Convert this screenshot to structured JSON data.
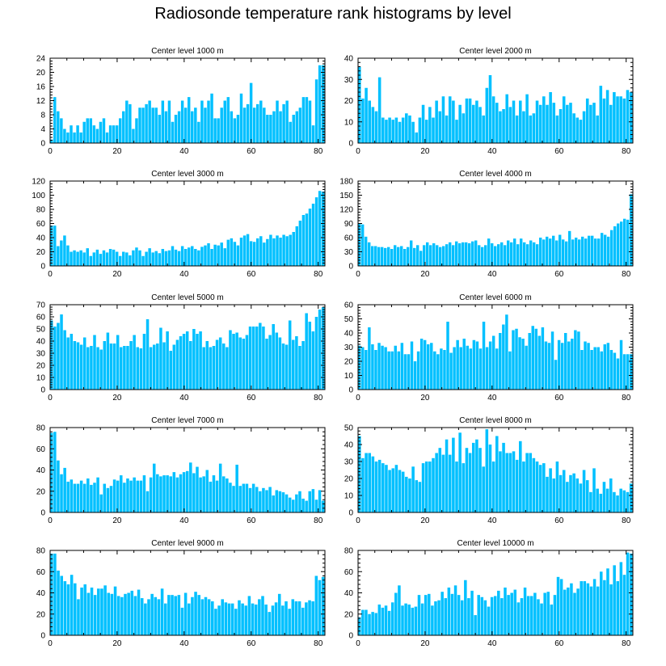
{
  "title": "Radiosonde temperature rank histograms by level",
  "colors": {
    "bar": "#00C0FF",
    "bar_edge": "#0090D0",
    "axis": "#000000"
  },
  "chart_data": [
    {
      "type": "bar",
      "title": "Center level 1000 m",
      "xlabel": "",
      "ylabel": "",
      "xlim": [
        0,
        82
      ],
      "ylim": [
        0,
        24
      ],
      "xticks": [
        0,
        20,
        40,
        60,
        80
      ],
      "yticks": [
        0,
        4,
        8,
        12,
        16,
        20,
        24
      ],
      "values": [
        1,
        13,
        9,
        7,
        4,
        3,
        5,
        3,
        5,
        3,
        6,
        7,
        7,
        5,
        4,
        6,
        7,
        3,
        5,
        5,
        5,
        7,
        9,
        12,
        11,
        4,
        7,
        10,
        10,
        11,
        12,
        10,
        10,
        8,
        12,
        9,
        12,
        6,
        8,
        9,
        12,
        10,
        13,
        9,
        10,
        6,
        12,
        10,
        12,
        14,
        7,
        7,
        10,
        12,
        13,
        9,
        7,
        8,
        14,
        10,
        11,
        17,
        10,
        11,
        12,
        10,
        8,
        8,
        9,
        12,
        9,
        11,
        12,
        6,
        8,
        9,
        10,
        13,
        13,
        12,
        5,
        18,
        22,
        22
      ]
    },
    {
      "type": "bar",
      "title": "Center level 2000 m",
      "xlabel": "",
      "ylabel": "",
      "xlim": [
        0,
        82
      ],
      "ylim": [
        0,
        40
      ],
      "xticks": [
        0,
        20,
        40,
        60,
        80
      ],
      "yticks": [
        0,
        10,
        20,
        30,
        40
      ],
      "values": [
        36,
        21,
        26,
        20,
        17,
        15,
        31,
        12,
        11,
        12,
        11,
        12,
        10,
        12,
        14,
        13,
        10,
        5,
        12,
        18,
        11,
        17,
        12,
        20,
        15,
        22,
        13,
        22,
        20,
        11,
        18,
        14,
        21,
        21,
        18,
        20,
        17,
        13,
        26,
        32,
        22,
        19,
        15,
        16,
        23,
        17,
        20,
        13,
        20,
        15,
        23,
        13,
        14,
        20,
        18,
        22,
        18,
        24,
        19,
        13,
        16,
        22,
        18,
        19,
        14,
        12,
        11,
        15,
        21,
        18,
        19,
        13,
        27,
        21,
        25,
        18,
        24,
        22,
        22,
        21,
        25,
        24
      ]
    },
    {
      "type": "bar",
      "title": "Center level 3000 m",
      "xlabel": "",
      "ylabel": "",
      "xlim": [
        0,
        82
      ],
      "ylim": [
        0,
        120
      ],
      "xticks": [
        0,
        20,
        40,
        60,
        80
      ],
      "yticks": [
        0,
        20,
        40,
        60,
        80,
        100,
        120
      ],
      "values": [
        57,
        57,
        28,
        36,
        43,
        29,
        20,
        22,
        20,
        22,
        19,
        25,
        14,
        19,
        23,
        17,
        22,
        19,
        24,
        23,
        20,
        14,
        20,
        19,
        15,
        22,
        26,
        22,
        14,
        20,
        25,
        19,
        21,
        18,
        24,
        21,
        22,
        28,
        23,
        21,
        28,
        24,
        26,
        28,
        24,
        22,
        27,
        29,
        32,
        24,
        30,
        29,
        33,
        25,
        37,
        39,
        34,
        29,
        40,
        43,
        45,
        35,
        34,
        39,
        42,
        33,
        38,
        44,
        39,
        43,
        40,
        44,
        42,
        44,
        48,
        56,
        64,
        72,
        74,
        81,
        88,
        97,
        106,
        105
      ]
    },
    {
      "type": "bar",
      "title": "Center level 4000 m",
      "xlabel": "",
      "ylabel": "",
      "xlim": [
        0,
        82
      ],
      "ylim": [
        0,
        180
      ],
      "xticks": [
        0,
        20,
        40,
        60,
        80
      ],
      "yticks": [
        0,
        30,
        60,
        90,
        120,
        150,
        180
      ],
      "values": [
        90,
        88,
        62,
        50,
        42,
        42,
        40,
        40,
        38,
        40,
        36,
        44,
        40,
        42,
        36,
        40,
        54,
        38,
        44,
        32,
        44,
        50,
        44,
        48,
        44,
        40,
        42,
        46,
        50,
        44,
        52,
        48,
        50,
        50,
        48,
        52,
        54,
        44,
        40,
        44,
        58,
        48,
        42,
        46,
        50,
        44,
        54,
        50,
        58,
        46,
        58,
        50,
        46,
        54,
        50,
        46,
        60,
        56,
        62,
        58,
        64,
        54,
        66,
        56,
        52,
        74,
        56,
        60,
        56,
        62,
        58,
        64,
        64,
        58,
        58,
        70,
        66,
        62,
        76,
        84,
        90,
        94,
        100,
        98,
        152
      ]
    },
    {
      "type": "bar",
      "title": "Center level 5000 m",
      "xlabel": "",
      "ylabel": "",
      "xlim": [
        0,
        82
      ],
      "ylim": [
        0,
        70
      ],
      "xticks": [
        0,
        20,
        40,
        60,
        80
      ],
      "yticks": [
        0,
        10,
        20,
        30,
        40,
        50,
        60,
        70
      ],
      "values": [
        57,
        52,
        55,
        62,
        49,
        43,
        46,
        40,
        39,
        37,
        43,
        35,
        36,
        45,
        35,
        33,
        40,
        47,
        38,
        38,
        45,
        35,
        36,
        36,
        40,
        45,
        35,
        34,
        46,
        58,
        35,
        37,
        38,
        51,
        39,
        48,
        32,
        37,
        41,
        44,
        46,
        48,
        40,
        50,
        46,
        48,
        35,
        40,
        35,
        36,
        41,
        43,
        38,
        35,
        49,
        46,
        47,
        43,
        42,
        45,
        52,
        52,
        52,
        55,
        52,
        42,
        45,
        54,
        47,
        43,
        38,
        37,
        57,
        41,
        44,
        36,
        40,
        63,
        56,
        48,
        60,
        66,
        68
      ]
    },
    {
      "type": "bar",
      "title": "Center level 6000 m",
      "xlabel": "",
      "ylabel": "",
      "xlim": [
        0,
        82
      ],
      "ylim": [
        0,
        60
      ],
      "xticks": [
        0,
        20,
        40,
        60,
        80
      ],
      "yticks": [
        0,
        10,
        20,
        30,
        40,
        50,
        60
      ],
      "values": [
        31,
        30,
        28,
        44,
        32,
        28,
        33,
        31,
        30,
        27,
        27,
        31,
        27,
        33,
        25,
        25,
        34,
        20,
        27,
        36,
        35,
        32,
        33,
        27,
        25,
        29,
        28,
        48,
        26,
        30,
        35,
        30,
        36,
        31,
        29,
        35,
        34,
        29,
        48,
        30,
        34,
        38,
        29,
        40,
        46,
        53,
        27,
        42,
        43,
        37,
        36,
        31,
        40,
        45,
        43,
        38,
        44,
        34,
        33,
        41,
        21,
        35,
        33,
        40,
        34,
        36,
        42,
        41,
        28,
        34,
        33,
        28,
        30,
        30,
        27,
        32,
        33,
        28,
        26,
        22,
        35,
        25,
        25,
        25
      ]
    },
    {
      "type": "bar",
      "title": "Center level 7000 m",
      "xlabel": "",
      "ylabel": "",
      "xlim": [
        0,
        82
      ],
      "ylim": [
        0,
        80
      ],
      "xticks": [
        0,
        20,
        40,
        60,
        80
      ],
      "yticks": [
        0,
        20,
        40,
        60,
        80
      ],
      "values": [
        75,
        76,
        49,
        36,
        42,
        29,
        31,
        27,
        27,
        30,
        27,
        32,
        26,
        28,
        33,
        17,
        27,
        23,
        25,
        31,
        30,
        35,
        28,
        32,
        30,
        33,
        30,
        30,
        35,
        20,
        33,
        46,
        36,
        34,
        35,
        35,
        34,
        38,
        33,
        36,
        38,
        39,
        47,
        37,
        43,
        33,
        34,
        40,
        29,
        35,
        30,
        46,
        34,
        32,
        28,
        25,
        45,
        25,
        27,
        27,
        23,
        27,
        24,
        20,
        23,
        21,
        24,
        16,
        21,
        20,
        19,
        17,
        14,
        12,
        17,
        20,
        13,
        11,
        20,
        22,
        12,
        21,
        11
      ]
    },
    {
      "type": "bar",
      "title": "Center level 8000 m",
      "xlabel": "",
      "ylabel": "",
      "xlim": [
        0,
        82
      ],
      "ylim": [
        0,
        50
      ],
      "xticks": [
        0,
        20,
        40,
        60,
        80
      ],
      "yticks": [
        0,
        10,
        20,
        30,
        40,
        50
      ],
      "values": [
        45,
        32,
        35,
        35,
        33,
        30,
        31,
        29,
        28,
        25,
        26,
        28,
        25,
        24,
        21,
        20,
        27,
        19,
        18,
        29,
        30,
        30,
        32,
        35,
        38,
        34,
        43,
        34,
        44,
        30,
        47,
        29,
        38,
        35,
        41,
        43,
        38,
        27,
        49,
        40,
        30,
        45,
        36,
        41,
        35,
        35,
        36,
        31,
        42,
        30,
        35,
        35,
        32,
        30,
        28,
        29,
        21,
        26,
        20,
        30,
        22,
        25,
        18,
        22,
        23,
        20,
        17,
        25,
        19,
        12,
        26,
        14,
        11,
        18,
        14,
        20,
        12,
        10,
        14,
        13,
        12,
        17
      ]
    },
    {
      "type": "bar",
      "title": "Center level 9000 m",
      "xlabel": "",
      "ylabel": "",
      "xlim": [
        0,
        82
      ],
      "ylim": [
        0,
        80
      ],
      "xticks": [
        0,
        20,
        40,
        60,
        80
      ],
      "yticks": [
        0,
        20,
        40,
        60,
        80
      ],
      "values": [
        77,
        77,
        61,
        56,
        51,
        48,
        57,
        49,
        34,
        45,
        48,
        40,
        45,
        38,
        44,
        44,
        47,
        40,
        39,
        46,
        37,
        36,
        39,
        40,
        42,
        37,
        43,
        35,
        30,
        34,
        39,
        36,
        34,
        44,
        30,
        38,
        38,
        37,
        38,
        26,
        40,
        30,
        36,
        41,
        38,
        34,
        36,
        34,
        32,
        25,
        28,
        34,
        31,
        30,
        30,
        25,
        33,
        30,
        28,
        37,
        30,
        29,
        34,
        37,
        29,
        22,
        28,
        31,
        39,
        28,
        32,
        25,
        34,
        32,
        32,
        26,
        31,
        33,
        32,
        56,
        52,
        55
      ]
    },
    {
      "type": "bar",
      "title": "Center level 10000 m",
      "xlabel": "",
      "ylabel": "",
      "xlim": [
        0,
        82
      ],
      "ylim": [
        0,
        80
      ],
      "xticks": [
        0,
        20,
        40,
        60,
        80
      ],
      "yticks": [
        0,
        20,
        40,
        60,
        80
      ],
      "values": [
        17,
        24,
        24,
        20,
        22,
        21,
        29,
        26,
        28,
        23,
        31,
        40,
        47,
        28,
        30,
        29,
        26,
        27,
        38,
        30,
        38,
        39,
        28,
        32,
        33,
        41,
        35,
        45,
        39,
        47,
        38,
        33,
        52,
        35,
        42,
        19,
        38,
        36,
        33,
        27,
        36,
        37,
        42,
        35,
        45,
        38,
        40,
        43,
        31,
        35,
        45,
        37,
        37,
        40,
        34,
        30,
        40,
        41,
        29,
        38,
        55,
        53,
        43,
        45,
        49,
        40,
        44,
        51,
        51,
        49,
        46,
        53,
        46,
        60,
        52,
        63,
        48,
        66,
        51,
        69,
        57,
        78,
        77
      ]
    }
  ]
}
